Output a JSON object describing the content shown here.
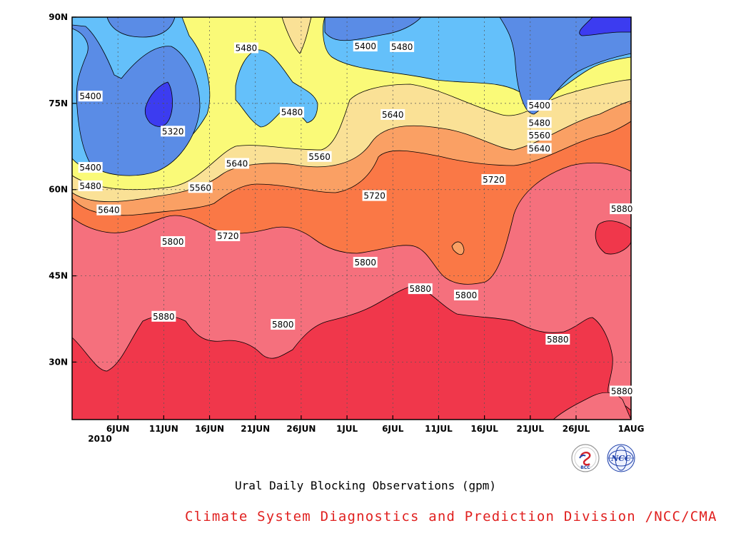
{
  "chart_data": {
    "type": "heatmap",
    "subtype": "filled-contour",
    "title": "Ural Daily Blocking Observations (gpm)",
    "credit": "Climate System Diagnostics and Prediction Division /NCC/CMA",
    "x_ticks": [
      "6JUN",
      "11JUN",
      "16JUN",
      "21JUN",
      "26JUN",
      "1JUL",
      "6JUL",
      "11JUL",
      "16JUL",
      "21JUL",
      "26JUL",
      "1AUG"
    ],
    "x_year_label": "2010",
    "y_ticks": [
      "30N",
      "45N",
      "60N",
      "75N",
      "90N"
    ],
    "y_tick_values": [
      30,
      45,
      60,
      75,
      90
    ],
    "x_range": [
      "2010-06-01",
      "2010-08-01"
    ],
    "y_range": [
      20,
      90
    ],
    "grid": true,
    "contour_levels": [
      5320,
      5400,
      5480,
      5560,
      5640,
      5720,
      5800,
      5880
    ],
    "level_colors": {
      "below_5320": "#3c3cf0",
      "5320": "#5a8ce6",
      "5400": "#64c0fa",
      "5480": "#fafa78",
      "5560": "#fae196",
      "5640": "#faa064",
      "5720": "#fa7846",
      "5800": "#f5707d",
      "5880": "#f0374b"
    },
    "contour_labels": [
      {
        "text": "5480",
        "date": "2010-06-20",
        "lat": 84.6
      },
      {
        "text": "5400",
        "date": "2010-07-03",
        "lat": 84.9
      },
      {
        "text": "5480",
        "date": "2010-07-07",
        "lat": 84.8
      },
      {
        "text": "5400",
        "date": "2010-06-03",
        "lat": 76.2
      },
      {
        "text": "5320",
        "date": "2010-06-12",
        "lat": 70.1
      },
      {
        "text": "5480",
        "date": "2010-06-25",
        "lat": 73.4
      },
      {
        "text": "5640",
        "date": "2010-07-06",
        "lat": 73.0
      },
      {
        "text": "5400",
        "date": "2010-07-22",
        "lat": 74.6
      },
      {
        "text": "5480",
        "date": "2010-07-22",
        "lat": 71.6
      },
      {
        "text": "5560",
        "date": "2010-07-22",
        "lat": 69.4
      },
      {
        "text": "5640",
        "date": "2010-07-22",
        "lat": 67.1
      },
      {
        "text": "5400",
        "date": "2010-06-03",
        "lat": 63.8
      },
      {
        "text": "5560",
        "date": "2010-06-28",
        "lat": 65.7
      },
      {
        "text": "5640",
        "date": "2010-06-19",
        "lat": 64.5
      },
      {
        "text": "5480",
        "date": "2010-06-03",
        "lat": 60.6
      },
      {
        "text": "5560",
        "date": "2010-06-15",
        "lat": 60.3
      },
      {
        "text": "5720",
        "date": "2010-07-17",
        "lat": 61.7
      },
      {
        "text": "5720",
        "date": "2010-07-04",
        "lat": 58.9
      },
      {
        "text": "5640",
        "date": "2010-06-05",
        "lat": 56.4
      },
      {
        "text": "5880",
        "date": "2010-07-31",
        "lat": 56.6
      },
      {
        "text": "5720",
        "date": "2010-06-18",
        "lat": 51.9
      },
      {
        "text": "5800",
        "date": "2010-06-12",
        "lat": 50.9
      },
      {
        "text": "5800",
        "date": "2010-07-03",
        "lat": 47.3
      },
      {
        "text": "5880",
        "date": "2010-07-09",
        "lat": 42.7
      },
      {
        "text": "5800",
        "date": "2010-07-14",
        "lat": 41.6
      },
      {
        "text": "5880",
        "date": "2010-06-11",
        "lat": 37.9
      },
      {
        "text": "5800",
        "date": "2010-06-24",
        "lat": 36.5
      },
      {
        "text": "5880",
        "date": "2010-07-24",
        "lat": 33.9
      },
      {
        "text": "5880",
        "date": "2010-07-31",
        "lat": 24.9
      }
    ]
  }
}
